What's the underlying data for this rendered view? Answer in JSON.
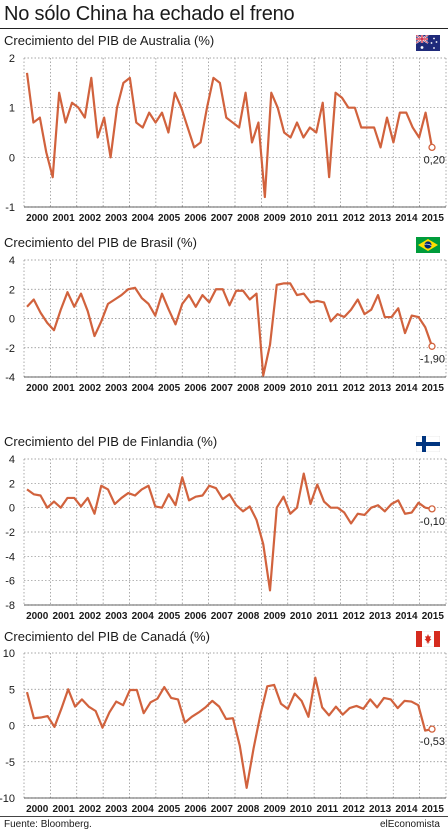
{
  "title": "No sólo China ha echado el freno",
  "footer": {
    "source": "Fuente: Bloomberg.",
    "brand": "elEconomista"
  },
  "colors": {
    "line": "#d1623d",
    "grid": "#888888",
    "text": "#1a1a1a"
  },
  "chart_data": [
    {
      "type": "line",
      "title": "Crecimiento del PIB de Australia (%)",
      "flag": "australia-flag",
      "ylim": [
        -1,
        2
      ],
      "yticks": [
        -1,
        0,
        1,
        2
      ],
      "xticks": [
        "2000",
        "2001",
        "2002",
        "2003",
        "2004",
        "2005",
        "2006",
        "2007",
        "2008",
        "2009",
        "2010",
        "2011",
        "2012",
        "2013",
        "2014",
        "2015"
      ],
      "last_label": "0,20",
      "series": [
        {
          "values": [
            1.7,
            0.7,
            0.8,
            0.1,
            -0.4,
            1.3,
            0.7,
            1.1,
            1.0,
            0.8,
            1.6,
            0.4,
            0.8,
            0.0,
            1.0,
            1.5,
            1.6,
            0.7,
            0.6,
            0.9,
            0.7,
            0.9,
            0.5,
            1.3,
            1.0,
            0.6,
            0.2,
            0.3,
            1.0,
            1.6,
            1.5,
            0.8,
            0.7,
            0.6,
            1.3,
            0.3,
            0.7,
            -0.8,
            1.3,
            1.0,
            0.5,
            0.4,
            0.7,
            0.4,
            0.6,
            0.5,
            1.1,
            -0.4,
            1.3,
            1.2,
            1.0,
            1.0,
            0.6,
            0.6,
            0.6,
            0.2,
            0.8,
            0.3,
            0.9,
            0.9,
            0.6,
            0.4,
            0.9,
            0.2
          ]
        }
      ]
    },
    {
      "type": "line",
      "title": "Crecimiento del PIB de Brasil (%)",
      "flag": "brazil-flag",
      "ylim": [
        -4,
        4
      ],
      "yticks": [
        -4,
        -2,
        0,
        2,
        4
      ],
      "xticks": [
        "2000",
        "2001",
        "2002",
        "2003",
        "2004",
        "2005",
        "2006",
        "2007",
        "2008",
        "2009",
        "2010",
        "2011",
        "2012",
        "2013",
        "2014",
        "2015"
      ],
      "last_label": "-1,90",
      "series": [
        {
          "values": [
            0.8,
            1.3,
            0.4,
            -0.3,
            -0.8,
            0.6,
            1.8,
            0.8,
            1.7,
            0.5,
            -1.2,
            -0.2,
            1.0,
            1.3,
            1.6,
            2.0,
            2.1,
            1.4,
            1.0,
            0.2,
            1.7,
            0.6,
            -0.4,
            1.0,
            1.6,
            0.8,
            1.6,
            1.1,
            2.0,
            2.0,
            0.9,
            1.9,
            1.9,
            1.3,
            1.7,
            -3.9,
            -1.8,
            2.3,
            2.4,
            2.4,
            1.6,
            1.7,
            1.1,
            1.2,
            1.1,
            -0.2,
            0.3,
            0.1,
            0.6,
            1.3,
            0.3,
            0.6,
            1.6,
            0.1,
            0.1,
            0.7,
            -1.0,
            0.2,
            0.1,
            -0.6,
            -1.9
          ]
        }
      ]
    },
    {
      "type": "line",
      "title": "Crecimiento del PIB de Finlandia (%)",
      "flag": "finland-flag",
      "ylim": [
        -8,
        4
      ],
      "yticks": [
        -8,
        -6,
        -4,
        -2,
        0,
        2,
        4
      ],
      "xticks": [
        "2000",
        "2001",
        "2002",
        "2003",
        "2004",
        "2005",
        "2006",
        "2007",
        "2008",
        "2009",
        "2010",
        "2011",
        "2012",
        "2013",
        "2014",
        "2015"
      ],
      "last_label": "-0,10",
      "series": [
        {
          "values": [
            1.5,
            1.1,
            1.0,
            0.0,
            0.5,
            0.0,
            0.8,
            0.8,
            0.1,
            0.8,
            -0.5,
            1.8,
            1.5,
            0.3,
            0.8,
            1.2,
            1.0,
            1.5,
            1.8,
            0.1,
            0.0,
            1.1,
            0.2,
            2.5,
            0.6,
            0.9,
            1.0,
            1.8,
            1.6,
            0.7,
            1.1,
            0.2,
            -0.3,
            0.1,
            -1.0,
            -3.0,
            -6.8,
            0.0,
            0.9,
            -0.5,
            0.0,
            2.8,
            0.3,
            1.9,
            0.5,
            0.0,
            0.0,
            -0.4,
            -1.3,
            -0.5,
            -0.6,
            0.0,
            0.2,
            -0.3,
            0.3,
            0.6,
            -0.5,
            -0.4,
            0.4,
            0.0,
            -0.1
          ]
        }
      ]
    },
    {
      "type": "line",
      "title": "Crecimiento del PIB de Canadá (%)",
      "flag": "canada-flag",
      "ylim": [
        -10,
        10
      ],
      "yticks": [
        -10,
        -5,
        0,
        5,
        10
      ],
      "xticks": [
        "2000",
        "2001",
        "2002",
        "2003",
        "2004",
        "2005",
        "2006",
        "2007",
        "2008",
        "2009",
        "2010",
        "2011",
        "2012",
        "2013",
        "2014",
        "2015"
      ],
      "last_label": "-0,53",
      "series": [
        {
          "values": [
            4.6,
            1.0,
            1.1,
            1.3,
            -0.2,
            2.3,
            5.0,
            2.6,
            3.6,
            2.6,
            2.0,
            -0.3,
            1.8,
            3.3,
            2.8,
            4.9,
            4.9,
            1.7,
            3.2,
            3.7,
            5.3,
            3.8,
            3.6,
            0.4,
            1.2,
            1.8,
            2.5,
            3.4,
            2.6,
            0.9,
            1.0,
            -2.8,
            -8.6,
            -3.2,
            1.5,
            5.4,
            5.6,
            3.0,
            2.3,
            4.4,
            3.4,
            1.2,
            6.6,
            2.5,
            1.4,
            2.6,
            1.5,
            2.4,
            2.7,
            2.3,
            3.6,
            2.5,
            3.8,
            3.6,
            2.4,
            3.4,
            3.3,
            2.8,
            -0.7,
            -0.5
          ]
        }
      ]
    }
  ]
}
